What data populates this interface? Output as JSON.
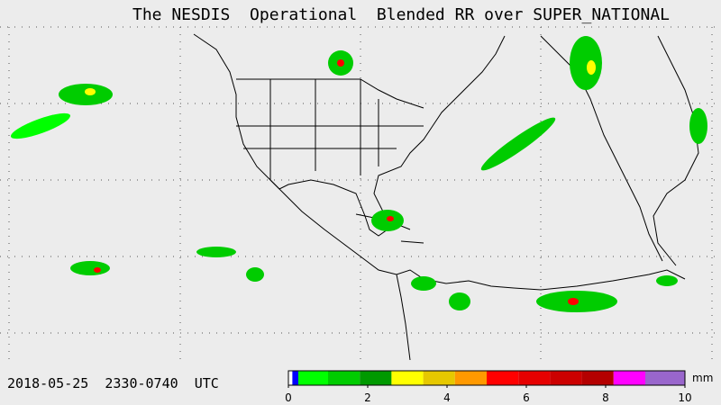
{
  "title": "The NESDIS  Operational  Blended RR over SUPER_NATIONAL",
  "timestamp": "2018-05-25  2330-0740  UTC",
  "colorbar": {
    "unit": "mm",
    "range": [
      0,
      10
    ],
    "ticks": [
      0,
      2,
      4,
      6,
      8,
      10
    ],
    "bounds": [
      0,
      0.1,
      0.25,
      1,
      1.8,
      2.6,
      3.4,
      4.2,
      5,
      5.8,
      6.6,
      7.4,
      8.2,
      9,
      10
    ],
    "colors": [
      "#ffffff",
      "#0000ff",
      "#00ff00",
      "#00cc00",
      "#009900",
      "#ffff00",
      "#e6c800",
      "#ff9900",
      "#ff0000",
      "#e60000",
      "#cc0000",
      "#b40000",
      "#ff00ff",
      "#9966cc"
    ]
  }
}
